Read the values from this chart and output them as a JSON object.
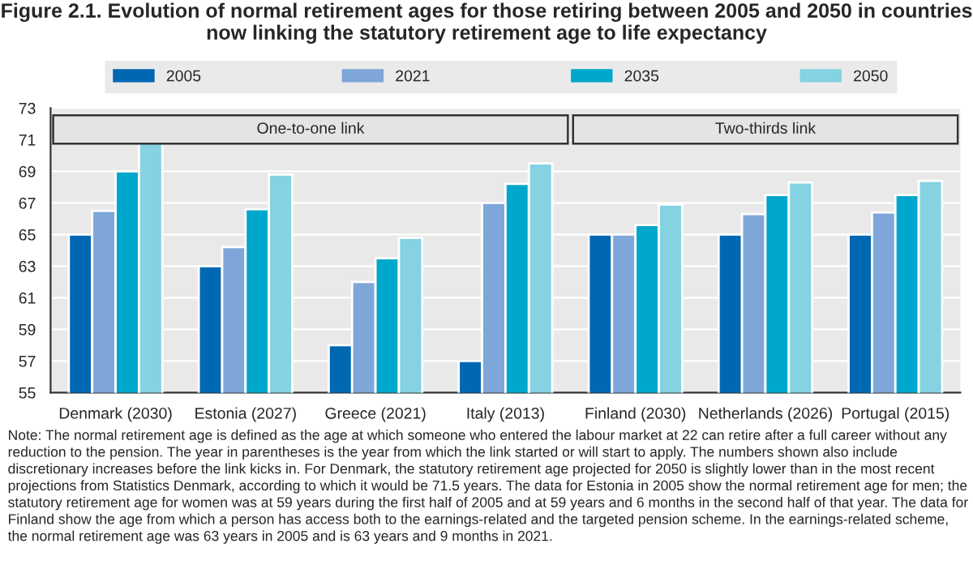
{
  "chart_data": {
    "type": "bar",
    "title": "Figure 2.1. Evolution of normal retirement ages for those retiring between 2005 and 2050 in countries now linking the statutory retirement age to life expectancy",
    "categories": [
      "Denmark (2030)",
      "Estonia (2027)",
      "Greece (2021)",
      "Italy (2013)",
      "Finland (2030)",
      "Netherlands (2026)",
      "Portugal (2015)"
    ],
    "series": [
      {
        "name": "2005",
        "color": "#0068b3",
        "values": [
          65,
          63,
          58,
          57,
          65,
          65,
          65
        ]
      },
      {
        "name": "2021",
        "color": "#7ea6d8",
        "values": [
          66.5,
          64.2,
          62,
          67,
          65,
          66.3,
          66.4
        ]
      },
      {
        "name": "2035",
        "color": "#00a7cc",
        "values": [
          69,
          66.6,
          63.5,
          68.2,
          65.6,
          67.5,
          67.5
        ]
      },
      {
        "name": "2050",
        "color": "#84d2e2",
        "values": [
          71,
          68.8,
          64.8,
          69.5,
          66.9,
          68.3,
          68.4
        ]
      }
    ],
    "ylim": [
      55,
      73
    ],
    "yticks": [
      55,
      57,
      59,
      61,
      63,
      65,
      67,
      69,
      71,
      73
    ],
    "grid": "y",
    "legend": "top",
    "bands": [
      {
        "axis": "x",
        "from": "Denmark (2030)",
        "to": "Italy (2013)",
        "label": "One-to-one link"
      },
      {
        "axis": "x",
        "from": "Finland (2030)",
        "to": "Portugal (2015)",
        "label": "Two-thirds link"
      }
    ],
    "annotations": [
      "Note: The normal retirement age is defined as the age at which someone who entered the labour market at 22 can retire after a full career without any reduction to the pension. The year in parentheses is the year from which the link started or will start to apply. The numbers shown also include discretionary increases before the link kicks in. For Denmark, the statutory retirement age projected for 2050 is slightly lower than in the most recent projections from Statistics Denmark, according to which it would be 71.5 years. The data for Estonia in 2005 show the normal retirement age for men; the statutory retirement age for women was at 59 years during the first half of 2005 and at 59 years and 6 months in the second half of that year. The data for Finland show the age from which a person has access both to the earnings-related and the targeted pension scheme. In the earnings-related scheme, the normal retirement age was 63 years in 2005 and is 63 years and 9 months in 2021."
    ]
  }
}
